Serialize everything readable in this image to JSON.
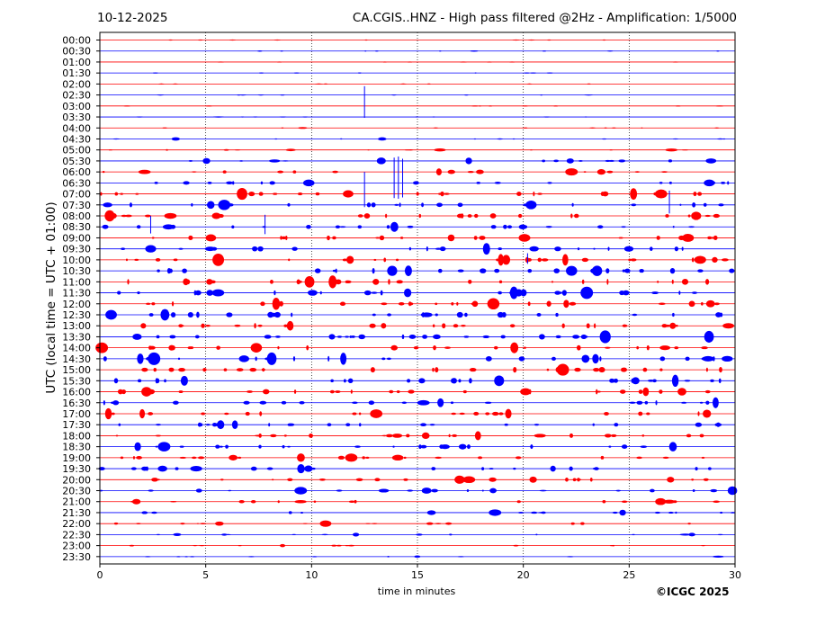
{
  "header": {
    "date": "10-12-2025",
    "title": "CA.CGIS..HNZ - High pass filtered @2Hz - Amplification: 1/5000"
  },
  "footer": {
    "copyright": "©ICGC 2025"
  },
  "chart_data": {
    "type": "line",
    "title": "CA.CGIS..HNZ - High pass filtered @2Hz - Amplification: 1/5000",
    "xlabel": "time in minutes",
    "ylabel": "UTC (local time = UTC + 01:00)",
    "xlim": [
      0,
      30
    ],
    "x_ticks": [
      0,
      5,
      10,
      15,
      20,
      25,
      30
    ],
    "x_grid": "dotted vertical lines at 5, 10, 15, 20, 25",
    "row_labels": [
      "00:00",
      "00:30",
      "01:00",
      "01:30",
      "02:00",
      "02:30",
      "03:00",
      "03:30",
      "04:00",
      "04:30",
      "05:00",
      "05:30",
      "06:00",
      "06:30",
      "07:00",
      "07:30",
      "08:00",
      "08:30",
      "09:00",
      "09:30",
      "10:00",
      "10:30",
      "11:00",
      "11:30",
      "12:00",
      "12:30",
      "13:00",
      "13:30",
      "14:00",
      "14:30",
      "15:00",
      "15:30",
      "16:00",
      "16:30",
      "17:00",
      "17:30",
      "18:00",
      "18:30",
      "19:00",
      "19:30",
      "20:00",
      "20:30",
      "21:00",
      "21:30",
      "22:00",
      "22:30",
      "23:00",
      "23:30"
    ],
    "trace_colors": [
      "#ff0000",
      "#0000ff"
    ],
    "noise_levels": [
      0.2,
      0.2,
      0.15,
      0.15,
      0.15,
      0.2,
      0.2,
      0.3,
      0.3,
      0.4,
      0.5,
      0.8,
      0.9,
      1.0,
      1.4,
      1.4,
      1.4,
      1.2,
      1.3,
      1.4,
      1.5,
      1.5,
      1.6,
      1.6,
      1.6,
      1.6,
      1.6,
      1.5,
      1.5,
      1.5,
      1.5,
      1.5,
      1.4,
      1.3,
      1.3,
      1.3,
      1.2,
      1.2,
      1.2,
      1.2,
      1.1,
      1.0,
      0.9,
      0.8,
      0.8,
      0.6,
      0.5,
      0.4
    ],
    "events": [
      {
        "row": 6,
        "minute": 12.5,
        "amplitude": 1.8
      },
      {
        "row": 13,
        "minute": 13.9,
        "amplitude": 2.3
      },
      {
        "row": 13,
        "minute": 14.1,
        "amplitude": 2.4
      },
      {
        "row": 13,
        "minute": 14.3,
        "amplitude": 2.2
      },
      {
        "row": 14,
        "minute": 12.5,
        "amplitude": 2.0
      },
      {
        "row": 15,
        "minute": 26.9,
        "amplitude": 1.3
      },
      {
        "row": 17,
        "minute": 2.4,
        "amplitude": 1.0
      },
      {
        "row": 17,
        "minute": 7.8,
        "amplitude": 1.1
      },
      {
        "row": 20,
        "minute": 20.2,
        "amplitude": 0.6
      }
    ]
  }
}
